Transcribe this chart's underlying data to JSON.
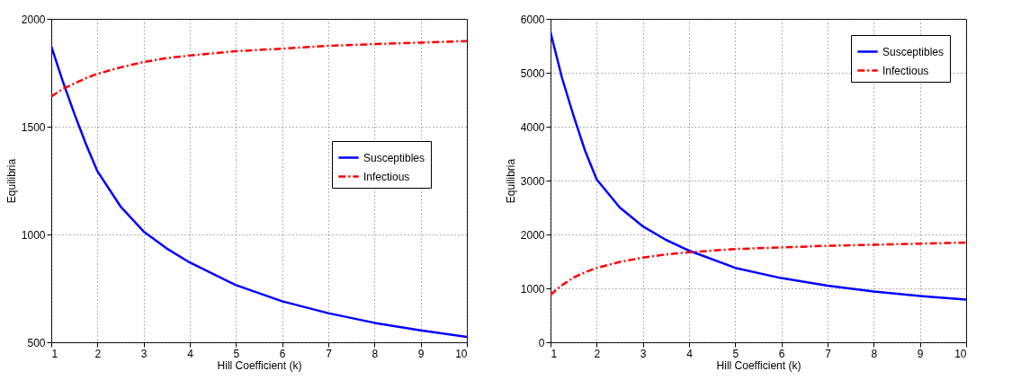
{
  "chart_data": [
    {
      "type": "line",
      "xlabel": "Hill Coefficient (k)",
      "ylabel": "Equilibria",
      "x": [
        1,
        1.25,
        1.5,
        1.75,
        2,
        2.5,
        3,
        3.5,
        4,
        5,
        6,
        7,
        8,
        9,
        10
      ],
      "xlim": [
        1,
        10
      ],
      "xticks": [
        1,
        2,
        3,
        4,
        5,
        6,
        7,
        8,
        9,
        10
      ],
      "ylim": [
        500,
        2000
      ],
      "yticks": [
        500,
        1000,
        1500,
        2000
      ],
      "grid": true,
      "legend": "right",
      "series": [
        {
          "name": "Susceptibles",
          "color": "#0000ff",
          "line_style": "solid",
          "values": [
            1873,
            1710,
            1560,
            1420,
            1293,
            1130,
            1014,
            935,
            870,
            765,
            690,
            635,
            590,
            555,
            525
          ]
        },
        {
          "name": "Infectious",
          "color": "#ff0000",
          "line_style": "dashed",
          "values": [
            1640,
            1675,
            1700,
            1725,
            1745,
            1775,
            1800,
            1818,
            1830,
            1850,
            1862,
            1875,
            1883,
            1890,
            1897
          ]
        }
      ]
    },
    {
      "type": "line",
      "xlabel": "Hill Coefficient (k)",
      "ylabel": "Equilibria",
      "x": [
        1,
        1.25,
        1.5,
        1.75,
        2,
        2.5,
        3,
        3.5,
        4,
        5,
        6,
        7,
        8,
        9,
        10
      ],
      "xlim": [
        1,
        10
      ],
      "xticks": [
        1,
        2,
        3,
        4,
        5,
        6,
        7,
        8,
        9,
        10
      ],
      "ylim": [
        0,
        6000
      ],
      "yticks": [
        0,
        1000,
        2000,
        3000,
        4000,
        5000,
        6000
      ],
      "grid": true,
      "legend": "top right",
      "series": [
        {
          "name": "Susceptibles",
          "color": "#0000ff",
          "line_style": "solid",
          "values": [
            5750,
            4900,
            4200,
            3550,
            3020,
            2500,
            2150,
            1900,
            1700,
            1380,
            1190,
            1050,
            940,
            860,
            790
          ]
        },
        {
          "name": "Infectious",
          "color": "#ff0000",
          "line_style": "dashed",
          "values": [
            880,
            1060,
            1200,
            1300,
            1380,
            1490,
            1570,
            1630,
            1670,
            1730,
            1760,
            1790,
            1810,
            1830,
            1850
          ]
        }
      ]
    }
  ]
}
